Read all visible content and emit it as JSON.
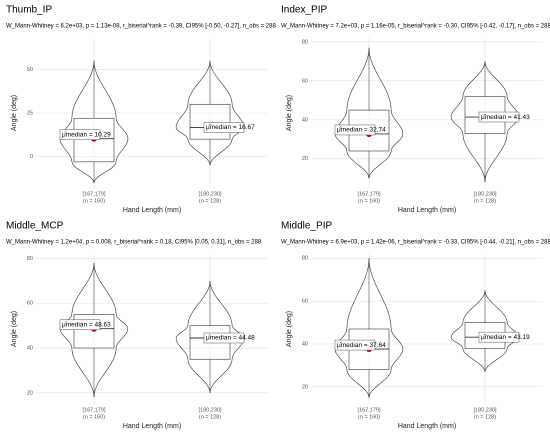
{
  "chart_data": [
    {
      "type": "violin",
      "title": "Thumb_IP",
      "subtitle": "W_Mann-Whitney = 6.2e+03, p = 1.13e-08, r_biserial^rank = -0.39, CI95% [-0.50, -0.27], n_obs = 288",
      "ylabel": "Angle (deg)",
      "xlabel": "Hand Length (mm)",
      "categories": [
        "[167,179]",
        "[180,230]"
      ],
      "count_labels": [
        "(n = 160)",
        "(n = 128)"
      ],
      "ylim": [
        -18,
        68
      ],
      "yticks": [
        0,
        25,
        50
      ],
      "grid": true,
      "groups": [
        {
          "color": "#66c28a",
          "min": -15,
          "q1": -3,
          "median": 10.29,
          "q3": 22,
          "max": 55,
          "median_label": "μ̂median = 10.29"
        },
        {
          "color": "#a58fcf",
          "min": -5,
          "q1": 10,
          "median": 16.67,
          "q3": 30,
          "max": 55,
          "median_label": "μ̂median = 16.67"
        }
      ]
    },
    {
      "type": "violin",
      "title": "Index_PIP",
      "subtitle": "W_Mann-Whitney = 7.2e+03, p = 1.16e-05, r_biserial^rank = -0.30, CI95% [-0.42, -0.17], n_obs = 288",
      "ylabel": "Angle (deg)",
      "xlabel": "Hand Length (mm)",
      "categories": [
        "[167,179]",
        "[180,230]"
      ],
      "count_labels": [
        "(n = 160)",
        "(n = 128)"
      ],
      "ylim": [
        5,
        82
      ],
      "yticks": [
        20,
        40,
        60,
        80
      ],
      "grid": true,
      "groups": [
        {
          "color": "#66c28a",
          "min": 10,
          "q1": 24,
          "median": 32.74,
          "q3": 45,
          "max": 77,
          "median_label": "μ̂median = 32.74"
        },
        {
          "color": "#a58fcf",
          "min": 8,
          "q1": 33,
          "median": 41.43,
          "q3": 52,
          "max": 70,
          "median_label": "μ̂median = 41.43"
        }
      ]
    },
    {
      "type": "violin",
      "title": "Middle_MCP",
      "subtitle": "W_Mann-Whitney = 1.2e+04, p = 0.008, r_biserial^rank = 0.18, CI95% [0.05, 0.31], n_obs = 288",
      "ylabel": "Angle (deg)",
      "xlabel": "Hand Length (mm)",
      "categories": [
        "[167,179]",
        "[180,230]"
      ],
      "count_labels": [
        "(n = 160)",
        "(n = 128)"
      ],
      "ylim": [
        15,
        82
      ],
      "yticks": [
        20,
        40,
        60,
        80
      ],
      "grid": true,
      "groups": [
        {
          "color": "#66c28a",
          "min": 18,
          "q1": 40,
          "median": 48.63,
          "q3": 55,
          "max": 78,
          "median_label": "μ̂median = 48.63"
        },
        {
          "color": "#a58fcf",
          "min": 20,
          "q1": 35,
          "median": 44.48,
          "q3": 50,
          "max": 70,
          "median_label": "μ̂median = 44.48"
        }
      ]
    },
    {
      "type": "violin",
      "title": "Middle_PIP",
      "subtitle": "W_Mann-Whitney = 6.9e+03, p = 1.42e-06, r_biserial^rank = -0.33, CI95% [-0.44, -0.21], n_obs = 288",
      "ylabel": "Angle (deg)",
      "xlabel": "Hand Length (mm)",
      "categories": [
        "[167,179]",
        "[180,230]"
      ],
      "count_labels": [
        "(n = 160)",
        "(n = 128)"
      ],
      "ylim": [
        12,
        82
      ],
      "yticks": [
        20,
        40,
        60,
        80
      ],
      "grid": true,
      "groups": [
        {
          "color": "#66c28a",
          "min": 15,
          "q1": 28,
          "median": 37.64,
          "q3": 47,
          "max": 80,
          "median_label": "μ̂median = 37.64"
        },
        {
          "color": "#a58fcf",
          "min": 27,
          "q1": 38,
          "median": 43.19,
          "q3": 50,
          "max": 65,
          "median_label": "μ̂median = 43.19"
        }
      ]
    }
  ]
}
